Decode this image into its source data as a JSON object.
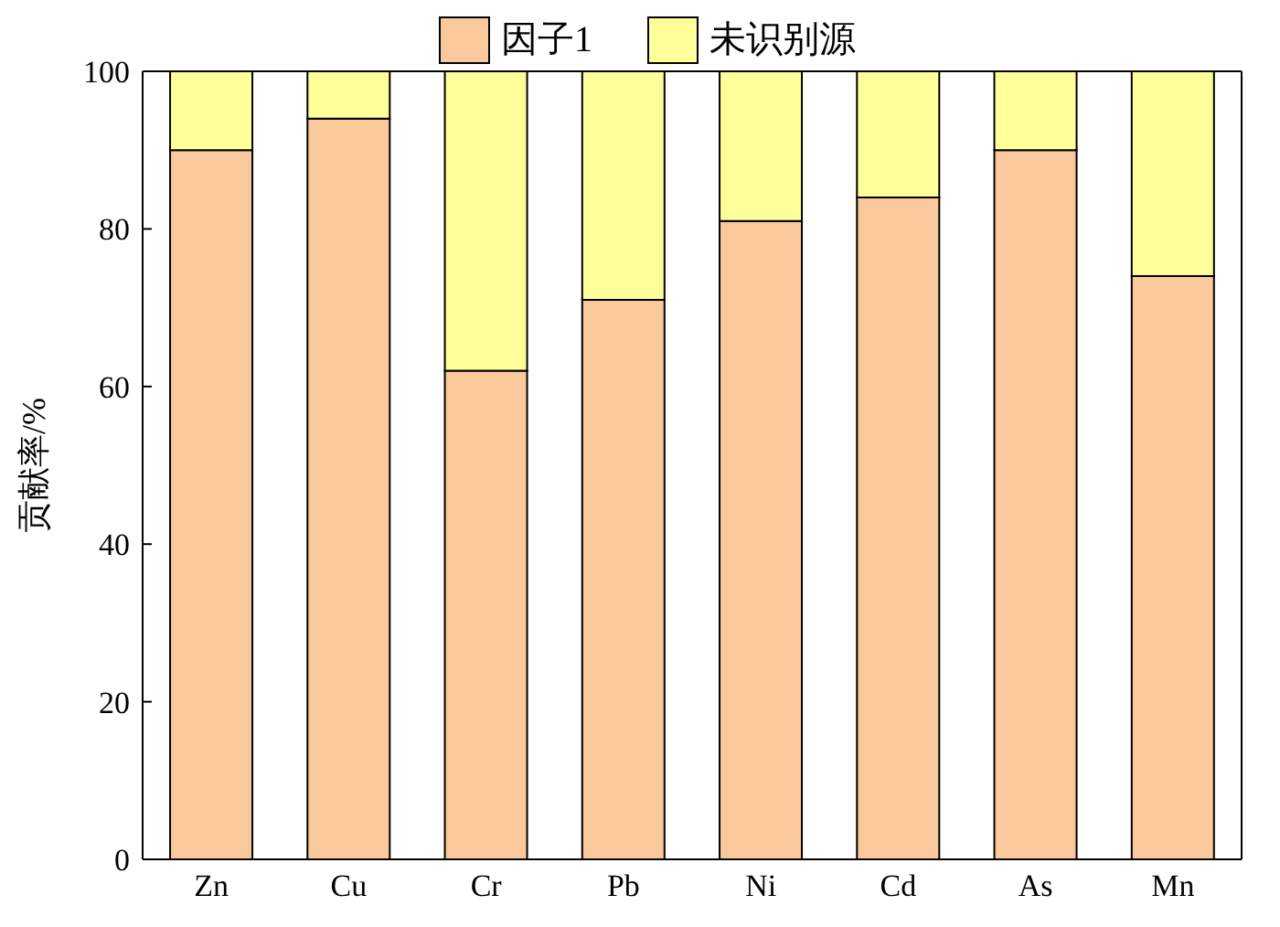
{
  "chart_data": {
    "type": "bar",
    "stacked": true,
    "ylabel": "贡献率/%",
    "categories": [
      "Zn",
      "Cu",
      "Cr",
      "Pb",
      "Ni",
      "Cd",
      "As",
      "Mn"
    ],
    "series": [
      {
        "name": "因子1",
        "color": "#f9c89b",
        "values": [
          90,
          94,
          62,
          71,
          81,
          84,
          90,
          74
        ]
      },
      {
        "name": "未识别源",
        "color": "#ffff99",
        "values": [
          10,
          6,
          38,
          29,
          19,
          16,
          10,
          26
        ]
      }
    ],
    "ylim": [
      0,
      100
    ],
    "yticks": [
      0,
      20,
      40,
      60,
      80,
      100
    ],
    "legend": "top"
  }
}
